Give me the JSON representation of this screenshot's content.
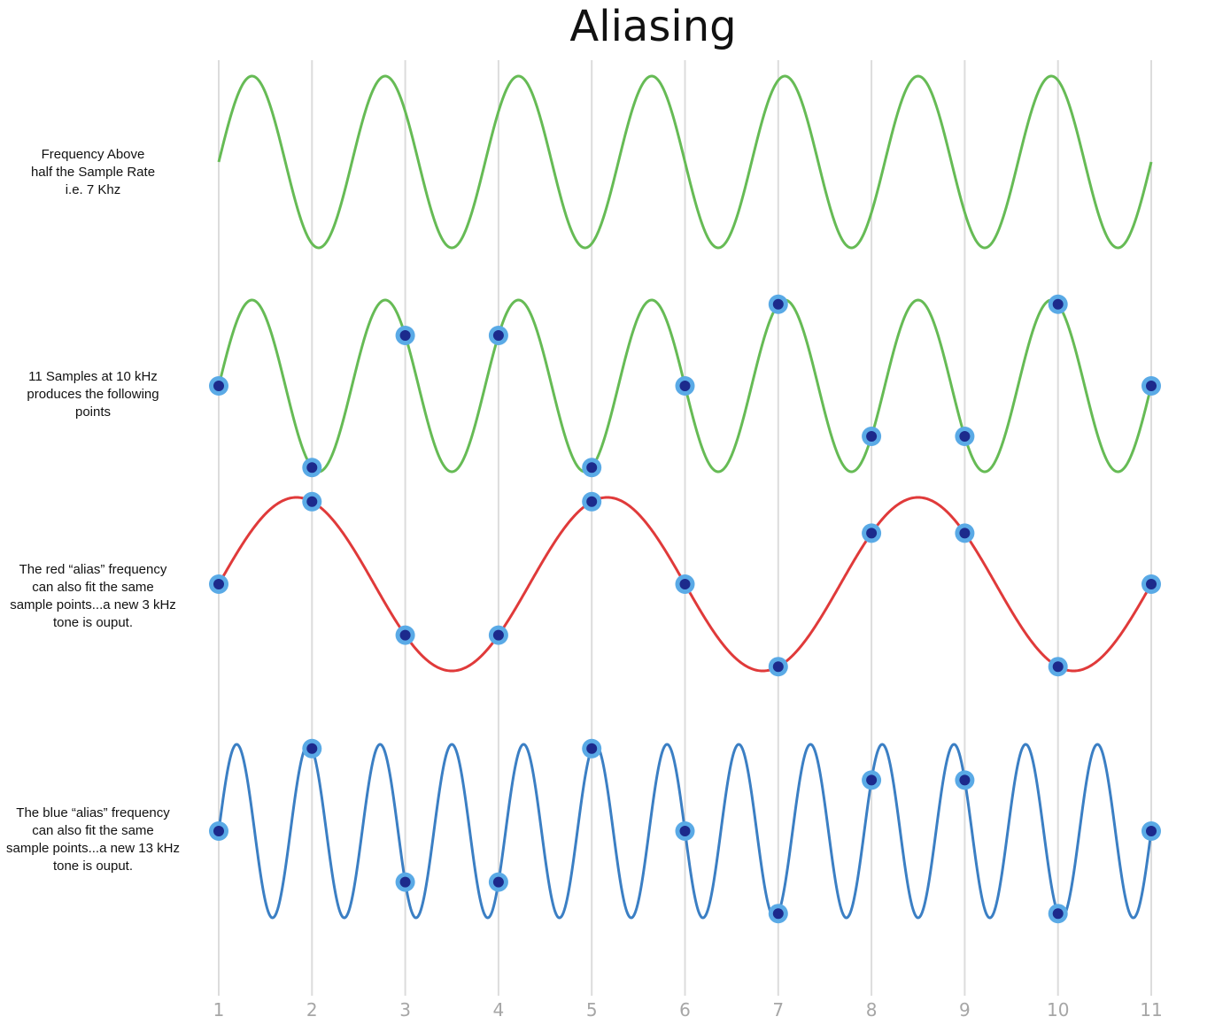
{
  "title": "Aliasing",
  "rows": [
    {
      "label": "Frequency  Above\nhalf the Sample Rate\ni.e. 7 Khz"
    },
    {
      "label": "11 Samples at 10 kHz\nproduces the following\npoints"
    },
    {
      "label": "The red “alias” frequency\ncan also fit the same\nsample points...a new 3 kHz\ntone is ouput."
    },
    {
      "label": "The blue “alias” frequency\ncan also fit the same\nsample points...a new 13 kHz\ntone is ouput."
    }
  ],
  "chart_data": {
    "type": "line",
    "title": "Aliasing",
    "x_ticks": [
      "1",
      "2",
      "3",
      "4",
      "5",
      "6",
      "7",
      "8",
      "9",
      "10",
      "11"
    ],
    "sample_positions": [
      1,
      2,
      3,
      4,
      5,
      6,
      7,
      8,
      9,
      10,
      11
    ],
    "sample_rate_khz": 10,
    "panels": [
      {
        "frequency_khz": 7,
        "color": "#66bb55",
        "show_samples": false
      },
      {
        "frequency_khz": 7,
        "color": "#66bb55",
        "show_samples": true
      },
      {
        "frequency_khz": 3,
        "color": "#e03a3a",
        "show_samples": true
      },
      {
        "frequency_khz": 13,
        "color": "#3b7fc4",
        "show_samples": true
      }
    ],
    "sample_marker_colors": {
      "outer": "#5aaae6",
      "inner": "#1c2a8c"
    },
    "grid": true
  }
}
